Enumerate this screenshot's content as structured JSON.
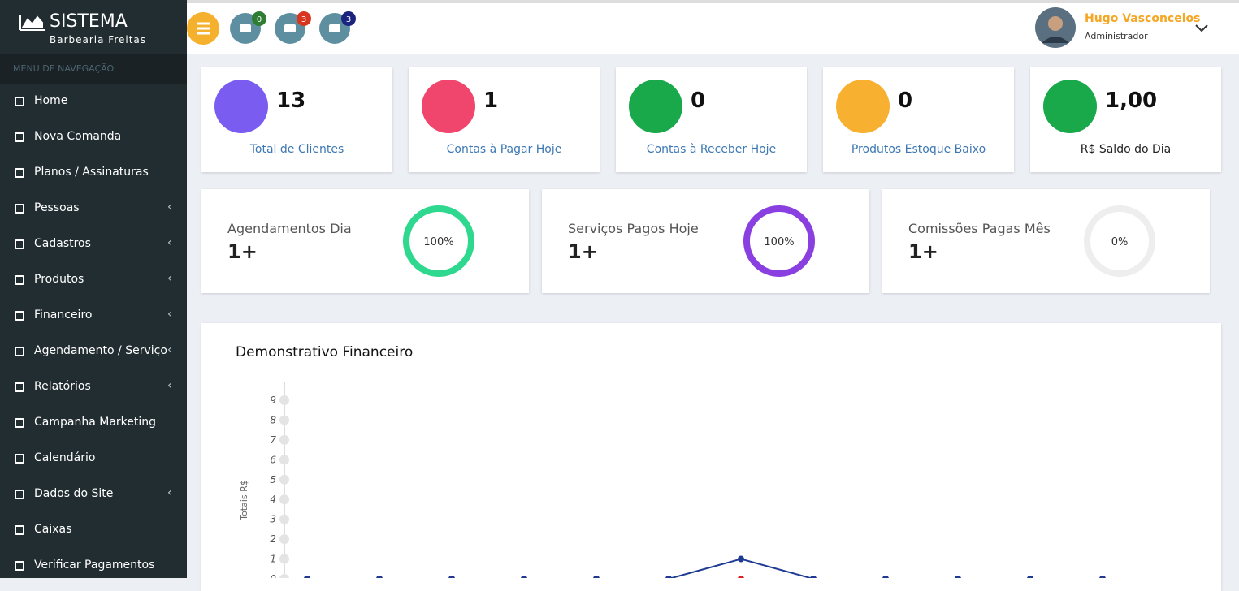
{
  "sidebar": {
    "brand": "SISTEMA",
    "subtitle": "Barbearia Freitas",
    "menu_header": "MENU DE NAVEGAÇÃO",
    "items": [
      {
        "label": "Home",
        "submenu": false
      },
      {
        "label": "Nova Comanda",
        "submenu": false
      },
      {
        "label": "Planos / Assinaturas",
        "submenu": false
      },
      {
        "label": "Pessoas",
        "submenu": true
      },
      {
        "label": "Cadastros",
        "submenu": true
      },
      {
        "label": "Produtos",
        "submenu": true
      },
      {
        "label": "Financeiro",
        "submenu": true
      },
      {
        "label": "Agendamento / Serviço",
        "submenu": true
      },
      {
        "label": "Relatórios",
        "submenu": true
      },
      {
        "label": "Campanha Marketing",
        "submenu": false
      },
      {
        "label": "Calendário",
        "submenu": false
      },
      {
        "label": "Dados do Site",
        "submenu": true
      },
      {
        "label": "Caixas",
        "submenu": false
      },
      {
        "label": "Verificar Pagamentos",
        "submenu": false
      }
    ]
  },
  "topbar": {
    "badges": [
      {
        "count": 0,
        "color": "#2e7d32"
      },
      {
        "count": 3,
        "color": "#d9361f"
      },
      {
        "count": 3,
        "color": "#1a237e"
      }
    ],
    "user": {
      "name": "Hugo Vasconcelos",
      "role": "Administrador"
    }
  },
  "stats": [
    {
      "value": 13,
      "label": "Total de Clientes",
      "color": "#7b5cf0"
    },
    {
      "value": 1,
      "label": "Contas à Pagar Hoje",
      "color": "#f0466e"
    },
    {
      "value": 0,
      "label": "Contas à Receber Hoje",
      "color": "#19a84a"
    },
    {
      "value": 0,
      "label": "Produtos Estoque Baixo",
      "color": "#f8b030"
    },
    {
      "value": "1,00",
      "label": "R$ Saldo do Dia",
      "color": "#19a84a"
    }
  ],
  "progress": [
    {
      "label": "Agendamentos Dia",
      "value": "1+",
      "percent": 100,
      "percent_label": "100%",
      "color": "#2ed88e"
    },
    {
      "label": "Serviços Pagos Hoje",
      "value": "1+",
      "percent": 100,
      "percent_label": "100%",
      "color": "#8a3fe0"
    },
    {
      "label": "Comissões Pagas Mês",
      "value": "1+",
      "percent": 0,
      "percent_label": "0%",
      "color": "#8a3fe0"
    }
  ],
  "chart": {
    "type": "line",
    "title": "Demonstrativo Financeiro",
    "y_label": "Totais R$",
    "ylim": [
      0,
      9
    ],
    "yticks": [
      0,
      1,
      2,
      3,
      4,
      5,
      6,
      7,
      8,
      9
    ],
    "series": [
      {
        "color": "#e02020",
        "values": [
          0,
          0,
          0,
          0,
          0,
          0,
          0,
          0,
          0,
          0,
          0,
          0
        ]
      },
      {
        "color": "#1f3a93",
        "values": [
          0,
          0,
          0,
          0,
          0,
          0,
          1,
          0,
          0,
          0,
          0,
          0
        ]
      }
    ]
  }
}
